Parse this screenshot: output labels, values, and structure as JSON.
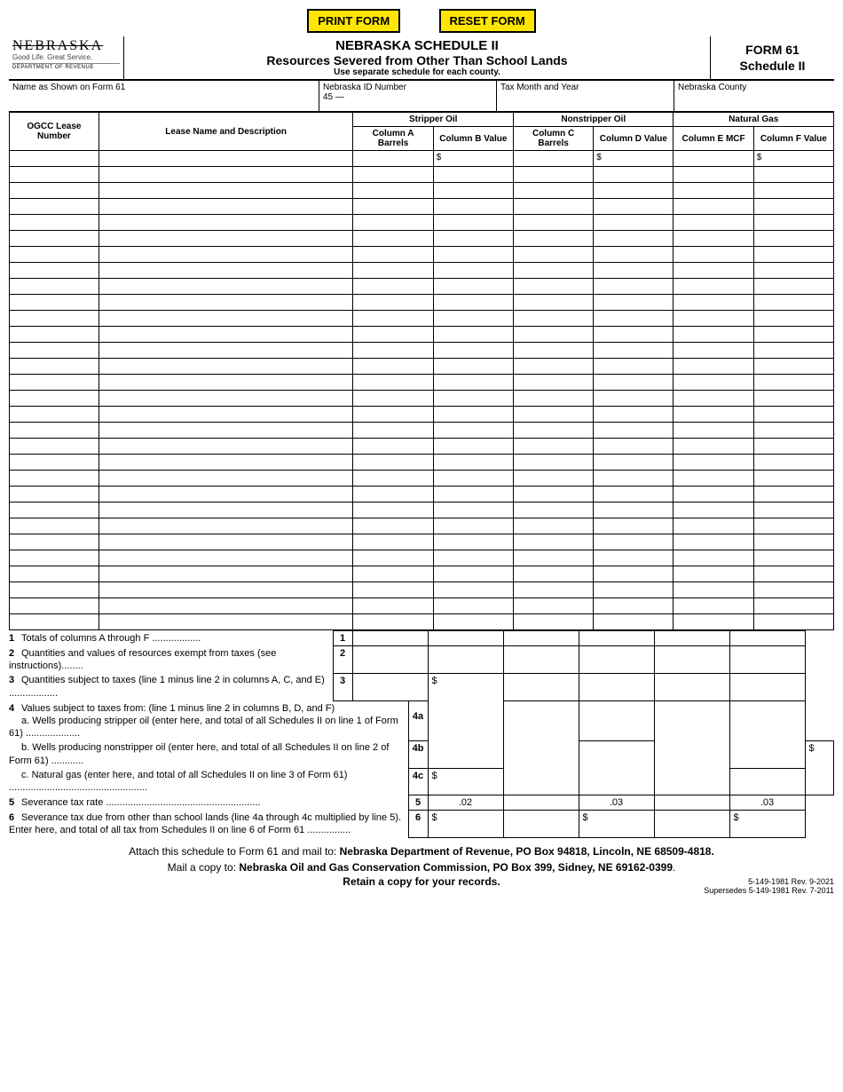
{
  "buttons": {
    "print": "PRINT FORM",
    "reset": "RESET FORM"
  },
  "logo": {
    "state": "NEBRASKA",
    "tagline": "Good Life. Great Service.",
    "dept": "DEPARTMENT OF REVENUE"
  },
  "title": {
    "line1": "NEBRASKA SCHEDULE II",
    "line2": "Resources Severed from Other Than School Lands",
    "line3": "Use separate schedule for each county."
  },
  "formbox": {
    "form": "FORM 61",
    "sched": "Schedule II"
  },
  "meta": {
    "name_label": "Name as Shown on Form 61",
    "id_label": "Nebraska ID Number",
    "id_prefix": "45 —",
    "tax_label": "Tax Month and Year",
    "county_label": "Nebraska County"
  },
  "headers": {
    "ogcc": "OGCC Lease Number",
    "lease": "Lease Name and Description",
    "stripper": "Stripper Oil",
    "nonstripper": "Nonstripper Oil",
    "gas": "Natural Gas",
    "colA": "Column A Barrels",
    "colB": "Column B Value",
    "colC": "Column C Barrels",
    "colD": "Column D Value",
    "colE": "Column E MCF",
    "colF": "Column F Value"
  },
  "dollar": "$",
  "num_data_rows": 27,
  "lines": {
    "l1": "Totals of columns A through F ..................",
    "l2": "Quantities and values of resources exempt from taxes (see instructions)........",
    "l3": "Quantities subject to taxes (line 1 minus line 2 in columns A, C, and E) ..................",
    "l4": "Values subject to taxes from: (line 1 minus line 2 in columns B, D, and F)",
    "l4a": "a. Wells producing stripper oil (enter here, and total of all Schedules II on line 1 of Form 61) ....................",
    "l4b": "b. Wells producing nonstripper oil (enter here, and total of all Schedules II on line 2 of Form 61) ............",
    "l4c": "c. Natural gas (enter here, and total of all Schedules II on line 3 of Form 61) ...................................................",
    "l5": "Severance tax rate .........................................................",
    "l6": "Severance tax due from other than school lands (line 4a through 4c multiplied by line 5). Enter here, and total of all tax from Schedules II on line 6 of Form 61 ................",
    "box1": "1",
    "box2": "2",
    "box3": "3",
    "box4a": "4a",
    "box4b": "4b",
    "box4c": "4c",
    "box5": "5",
    "box6": "6"
  },
  "rates": {
    "stripper": ".02",
    "nonstripper": ".03",
    "gas": ".03"
  },
  "footer": {
    "attach": "Attach this schedule to Form 61 and mail to: ",
    "dor_addr": "Nebraska Department of Revenue, PO Box 94818, Lincoln, NE 68509-4818.",
    "mailcopy": "Mail a copy to: ",
    "ogcc_addr": "Nebraska Oil and Gas Conservation Commission, PO Box 399, Sidney, NE 69162-0399",
    "retain": "Retain a copy for your records.",
    "rev1": "5-149-1981 Rev. 9-2021",
    "rev2": "Supersedes 5-149-1981 Rev. 7-2011"
  }
}
